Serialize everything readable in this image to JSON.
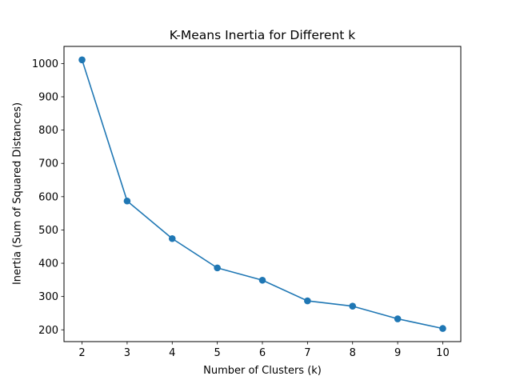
{
  "chart_data": {
    "type": "line",
    "title": "K-Means Inertia for Different k",
    "xlabel": "Number of Clusters (k)",
    "ylabel": "Inertia (Sum of Squared Distances)",
    "x": [
      2,
      3,
      4,
      5,
      6,
      7,
      8,
      9,
      10
    ],
    "series": [
      {
        "values": [
          1011,
          587,
          474,
          386,
          349,
          287,
          271,
          233,
          204
        ],
        "color": "#1f77b4",
        "marker": "circle"
      }
    ],
    "xlim": [
      1.6,
      10.4
    ],
    "ylim": [
      164.6,
      1051.4
    ],
    "xticks": [
      2,
      3,
      4,
      5,
      6,
      7,
      8,
      9,
      10
    ],
    "yticks": [
      200,
      300,
      400,
      500,
      600,
      700,
      800,
      900,
      1000
    ],
    "grid": false,
    "legend": "none"
  }
}
